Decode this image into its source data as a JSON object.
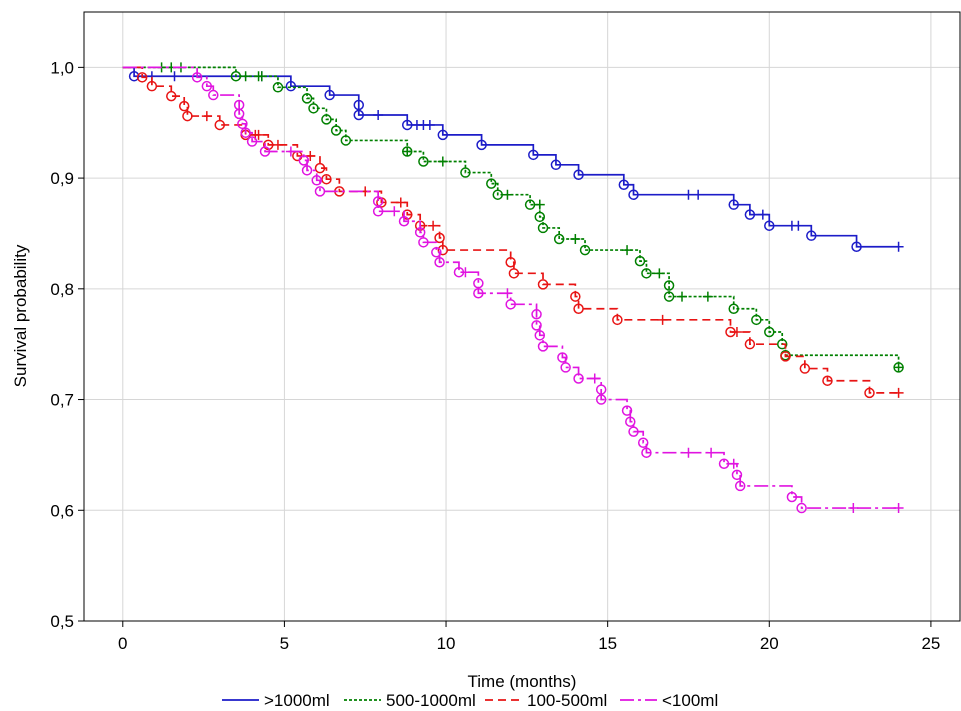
{
  "chart_data": {
    "type": "line",
    "line_shape": "step",
    "title": "",
    "xlabel": "Time (months)",
    "ylabel": "Survival probability",
    "xlim": [
      -1.2,
      25.9
    ],
    "ylim": [
      0.5,
      1.05
    ],
    "x_ticks": [
      "0",
      "5",
      "10",
      "15",
      "20",
      "25"
    ],
    "y_ticks": [
      "0,5",
      "0,6",
      "0,7",
      "0,8",
      "0,9",
      "1,0"
    ],
    "grid": true,
    "legend_position": "bottom",
    "event_marker": "circle",
    "censor_marker": "plus",
    "series": [
      {
        "name": ">1000ml",
        "color": "#1c1cc8",
        "line_style": "solid",
        "start": [
          0,
          1.0
        ],
        "events": [
          [
            0.35,
            0.992
          ],
          [
            5.2,
            0.983
          ],
          [
            6.4,
            0.975
          ],
          [
            7.3,
            0.966
          ],
          [
            7.3,
            0.957
          ],
          [
            8.8,
            0.948
          ],
          [
            9.9,
            0.939
          ],
          [
            11.1,
            0.93
          ],
          [
            12.7,
            0.921
          ],
          [
            13.4,
            0.912
          ],
          [
            14.1,
            0.903
          ],
          [
            15.5,
            0.894
          ],
          [
            15.8,
            0.885
          ],
          [
            18.9,
            0.876
          ],
          [
            19.4,
            0.867
          ],
          [
            20.0,
            0.857
          ],
          [
            21.3,
            0.848
          ],
          [
            22.7,
            0.838
          ]
        ],
        "censored": [
          [
            0.9,
            0.992
          ],
          [
            1.6,
            0.992
          ],
          [
            4.3,
            0.992
          ],
          [
            7.9,
            0.957
          ],
          [
            9.1,
            0.948
          ],
          [
            9.3,
            0.948
          ],
          [
            9.5,
            0.948
          ],
          [
            17.5,
            0.885
          ],
          [
            17.8,
            0.885
          ],
          [
            19.8,
            0.867
          ],
          [
            20.7,
            0.857
          ],
          [
            20.9,
            0.857
          ],
          [
            24.0,
            0.838
          ]
        ]
      },
      {
        "name": "500-1000ml",
        "color": "#008000",
        "line_style": "dotted",
        "start": [
          0,
          1.0
        ],
        "events": [
          [
            3.5,
            0.992
          ],
          [
            4.8,
            0.982
          ],
          [
            5.7,
            0.972
          ],
          [
            5.9,
            0.963
          ],
          [
            6.3,
            0.953
          ],
          [
            6.6,
            0.943
          ],
          [
            6.9,
            0.934
          ],
          [
            8.8,
            0.924
          ],
          [
            9.3,
            0.915
          ],
          [
            10.6,
            0.905
          ],
          [
            11.4,
            0.895
          ],
          [
            11.6,
            0.885
          ],
          [
            12.6,
            0.876
          ],
          [
            12.9,
            0.865
          ],
          [
            13.0,
            0.855
          ],
          [
            13.5,
            0.845
          ],
          [
            14.3,
            0.835
          ],
          [
            16.0,
            0.825
          ],
          [
            16.2,
            0.814
          ],
          [
            16.9,
            0.803
          ],
          [
            16.9,
            0.793
          ],
          [
            18.9,
            0.782
          ],
          [
            19.6,
            0.772
          ],
          [
            20.0,
            0.761
          ],
          [
            20.4,
            0.75
          ],
          [
            20.5,
            0.74
          ],
          [
            24.0,
            0.729
          ]
        ],
        "censored": [
          [
            1.2,
            1.0
          ],
          [
            1.5,
            1.0
          ],
          [
            1.8,
            1.0
          ],
          [
            3.8,
            0.992
          ],
          [
            4.2,
            0.992
          ],
          [
            4.3,
            0.992
          ],
          [
            8.8,
            0.924
          ],
          [
            9.9,
            0.915
          ],
          [
            11.9,
            0.885
          ],
          [
            12.9,
            0.876
          ],
          [
            14.0,
            0.845
          ],
          [
            15.6,
            0.835
          ],
          [
            16.6,
            0.814
          ],
          [
            17.3,
            0.793
          ],
          [
            18.1,
            0.793
          ],
          [
            24.0,
            0.729
          ]
        ]
      },
      {
        "name": "100-500ml",
        "color": "#e81414",
        "line_style": "dashed",
        "start": [
          0,
          1.0
        ],
        "events": [
          [
            0.6,
            0.991
          ],
          [
            0.9,
            0.983
          ],
          [
            1.5,
            0.974
          ],
          [
            1.9,
            0.965
          ],
          [
            2.0,
            0.956
          ],
          [
            3.0,
            0.948
          ],
          [
            3.8,
            0.939
          ],
          [
            4.5,
            0.93
          ],
          [
            5.4,
            0.92
          ],
          [
            6.1,
            0.909
          ],
          [
            6.3,
            0.899
          ],
          [
            6.7,
            0.888
          ],
          [
            8.0,
            0.878
          ],
          [
            8.8,
            0.867
          ],
          [
            9.2,
            0.857
          ],
          [
            9.8,
            0.846
          ],
          [
            9.9,
            0.835
          ],
          [
            12.0,
            0.824
          ],
          [
            12.1,
            0.814
          ],
          [
            13.0,
            0.804
          ],
          [
            14.0,
            0.793
          ],
          [
            14.1,
            0.782
          ],
          [
            15.3,
            0.772
          ],
          [
            18.8,
            0.761
          ],
          [
            19.4,
            0.75
          ],
          [
            20.5,
            0.739
          ],
          [
            21.1,
            0.728
          ],
          [
            21.8,
            0.717
          ],
          [
            23.1,
            0.706
          ]
        ],
        "censored": [
          [
            2.6,
            0.956
          ],
          [
            4.1,
            0.939
          ],
          [
            4.2,
            0.939
          ],
          [
            4.8,
            0.93
          ],
          [
            5.8,
            0.92
          ],
          [
            7.5,
            0.888
          ],
          [
            8.6,
            0.878
          ],
          [
            9.6,
            0.857
          ],
          [
            16.7,
            0.772
          ],
          [
            19.0,
            0.761
          ],
          [
            24.0,
            0.706
          ]
        ]
      },
      {
        "name": "<100ml",
        "color": "#e014e0",
        "line_style": "dash-dot",
        "start": [
          0,
          1.0
        ],
        "events": [
          [
            2.3,
            0.991
          ],
          [
            2.6,
            0.983
          ],
          [
            2.8,
            0.975
          ],
          [
            3.6,
            0.966
          ],
          [
            3.6,
            0.958
          ],
          [
            3.7,
            0.949
          ],
          [
            3.8,
            0.941
          ],
          [
            4.0,
            0.933
          ],
          [
            4.4,
            0.924
          ],
          [
            5.6,
            0.916
          ],
          [
            5.7,
            0.907
          ],
          [
            6.0,
            0.898
          ],
          [
            6.1,
            0.888
          ],
          [
            7.9,
            0.879
          ],
          [
            7.9,
            0.87
          ],
          [
            8.7,
            0.861
          ],
          [
            9.2,
            0.851
          ],
          [
            9.3,
            0.842
          ],
          [
            9.7,
            0.833
          ],
          [
            9.8,
            0.824
          ],
          [
            10.4,
            0.815
          ],
          [
            11.0,
            0.805
          ],
          [
            11.0,
            0.796
          ],
          [
            12.0,
            0.786
          ],
          [
            12.8,
            0.777
          ],
          [
            12.8,
            0.767
          ],
          [
            12.9,
            0.758
          ],
          [
            13.0,
            0.748
          ],
          [
            13.6,
            0.738
          ],
          [
            13.7,
            0.729
          ],
          [
            14.1,
            0.719
          ],
          [
            14.8,
            0.709
          ],
          [
            14.8,
            0.7
          ],
          [
            15.6,
            0.69
          ],
          [
            15.7,
            0.68
          ],
          [
            15.8,
            0.671
          ],
          [
            16.1,
            0.661
          ],
          [
            16.2,
            0.652
          ],
          [
            18.6,
            0.642
          ],
          [
            19.0,
            0.632
          ],
          [
            19.1,
            0.622
          ],
          [
            20.7,
            0.612
          ],
          [
            21.0,
            0.602
          ]
        ],
        "censored": [
          [
            5.2,
            0.924
          ],
          [
            8.4,
            0.87
          ],
          [
            10.6,
            0.815
          ],
          [
            11.9,
            0.796
          ],
          [
            14.6,
            0.719
          ],
          [
            17.5,
            0.652
          ],
          [
            18.2,
            0.652
          ],
          [
            18.9,
            0.642
          ],
          [
            22.6,
            0.602
          ],
          [
            24.0,
            0.602
          ]
        ]
      }
    ]
  }
}
